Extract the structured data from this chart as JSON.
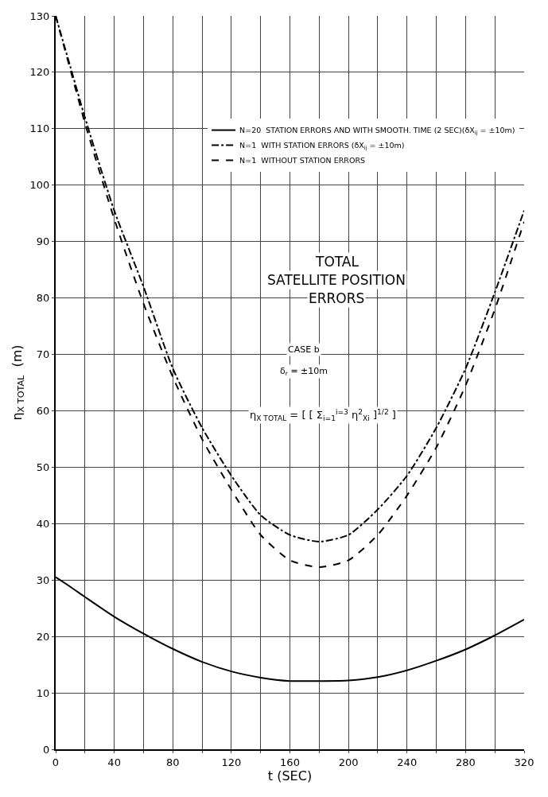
{
  "chart_data": {
    "type": "line",
    "xlabel": "t (SEC)",
    "ylabel": "η$_{X TOTAL}$  (m)",
    "x": [
      0,
      10,
      20,
      40,
      60,
      80,
      100,
      120,
      140,
      160,
      180,
      200,
      220,
      240,
      260,
      280,
      300,
      320
    ],
    "series": [
      {
        "name": "N=20  STATION ERRORS AND WITH SMOOTH. TIME (2 SEC)(δX$_{ij}$ = ±10m)",
        "color": "#000000",
        "line_style": "solid",
        "values": [
          30.5,
          28.8,
          27,
          23.5,
          20.5,
          17.8,
          15.5,
          13.8,
          12.7,
          12.1,
          12.1,
          12.2,
          12.8,
          14,
          15.7,
          17.7,
          20.2,
          23
        ]
      },
      {
        "name": "N=1  WITH STATION ERRORS (δX$_{ij}$ = ±10m)",
        "color": "#000000",
        "line_style": "dashdot",
        "values": [
          130,
          121,
          112,
          95.5,
          82,
          67.5,
          57,
          48.5,
          41.5,
          38,
          36.8,
          38,
          42.5,
          48.5,
          57,
          67.5,
          81,
          95.5
        ]
      },
      {
        "name": "N=1  WITHOUT STATION ERRORS",
        "color": "#000000",
        "line_style": "dashed",
        "values": [
          130,
          120.5,
          111,
          94,
          79,
          66,
          55,
          46,
          38,
          33.5,
          32.3,
          33.5,
          38,
          45,
          53.5,
          64.5,
          78,
          93.5
        ]
      }
    ],
    "xlim": [
      0,
      320
    ],
    "ylim": [
      0,
      130
    ],
    "xticks": [
      0,
      {
        "value": 20,
        "label": null
      },
      40,
      {
        "value": 60,
        "label": null
      },
      80,
      {
        "value": 100,
        "label": null
      },
      120,
      {
        "value": 140,
        "label": null
      },
      160,
      {
        "value": 180,
        "label": null
      },
      200,
      {
        "value": 220,
        "label": null
      },
      240,
      {
        "value": 260,
        "label": null
      },
      280,
      {
        "value": 300,
        "label": null
      },
      320
    ],
    "yticks": [
      0,
      10,
      20,
      30,
      40,
      50,
      60,
      70,
      80,
      90,
      100,
      110,
      120,
      130
    ],
    "grid": true,
    "legend": "top right",
    "marker": "none",
    "annotations": [
      "TOTAL",
      "SATELLITE POSITION",
      "ERRORS",
      "CASE b",
      "δ$_{r}$ = ±10m",
      "η$_{X TOTAL}$ = [ [ Σ$_{i=1}$$^{i=3}$ η$^{2}$$_{Xi}$ ]$^{1/2}$ ]"
    ]
  }
}
